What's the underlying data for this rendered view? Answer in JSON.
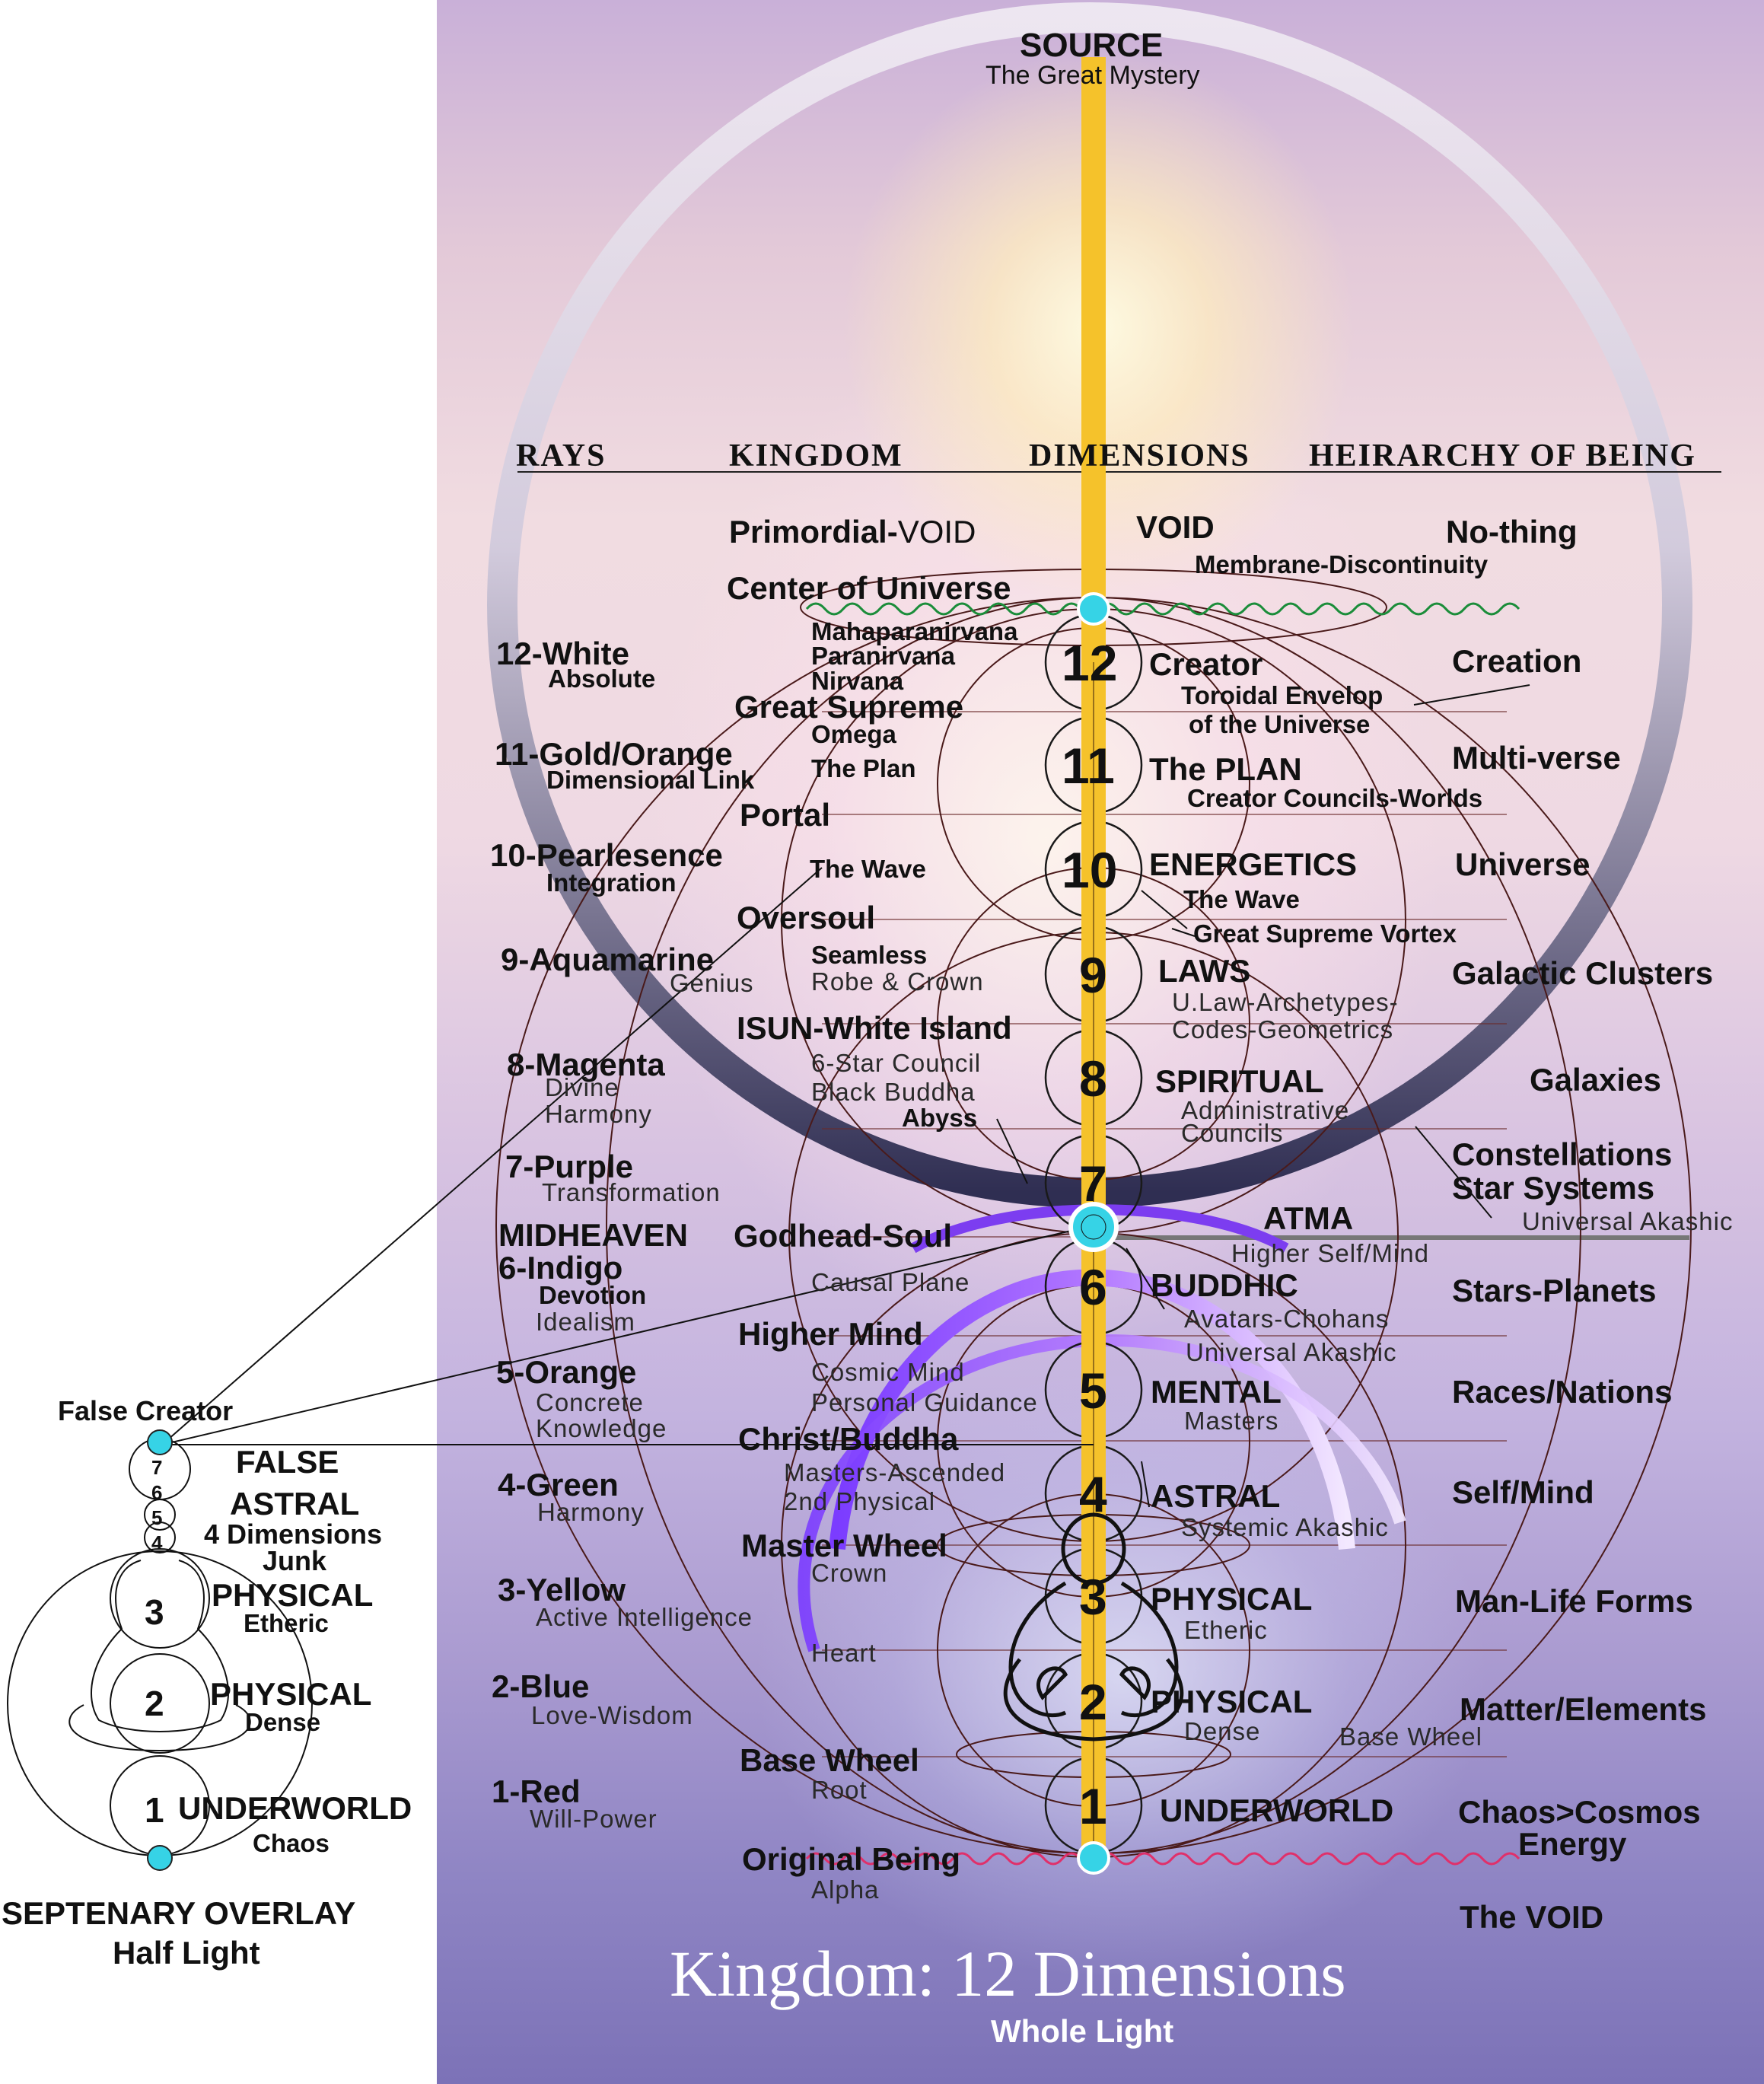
{
  "source": {
    "title": "SOURCE",
    "subtitle": "The Great Mystery"
  },
  "headers": {
    "rays": "RAYS",
    "kingdom": "KINGDOM",
    "dimensions": "DIMENSIONS",
    "hierarchy": "HEIRARCHY OF BEING"
  },
  "footer": {
    "title": "Kingdom: 12 Dimensions",
    "subtitle": "Whole Light"
  },
  "top_void": {
    "kingdom_prefix": "Primordial-",
    "kingdom_suffix": "VOID",
    "dimension": "VOID",
    "membrane": "Membrane-Discontinuity",
    "hierarchy": "No-thing",
    "center": "Center of Universe"
  },
  "dimension_numbers": [
    "1",
    "2",
    "3",
    "4",
    "5",
    "6",
    "7",
    "8",
    "9",
    "10",
    "11",
    "12"
  ],
  "rays": [
    {
      "name": "12-White",
      "desc": "Absolute"
    },
    {
      "name": "11-Gold/Orange",
      "desc": "Dimensional Link"
    },
    {
      "name": "10-Pearlesence",
      "desc": "Integration"
    },
    {
      "name": "9-Aquamarine",
      "desc": "Genius"
    },
    {
      "name": "8-Magenta",
      "desc": "Divine",
      "desc2": "Harmony"
    },
    {
      "name": "7-Purple",
      "desc": "Transformation"
    },
    {
      "name": "6-Indigo",
      "desc": "Devotion",
      "desc2": "Idealism",
      "above": "MIDHEAVEN"
    },
    {
      "name": "5-Orange",
      "desc": "Concrete",
      "desc2": "Knowledge"
    },
    {
      "name": "4-Green",
      "desc": "Harmony"
    },
    {
      "name": "3-Yellow",
      "desc": "Active Intelligence"
    },
    {
      "name": "2-Blue",
      "desc": "Love-Wisdom"
    },
    {
      "name": "1-Red",
      "desc": "Will-Power"
    }
  ],
  "kingdom": {
    "maha": "Mahaparanirvana",
    "parani": "Paranirvana",
    "nirvana": "Nirvana",
    "great_supreme": "Great Supreme",
    "omega": "Omega",
    "plan": "The Plan",
    "portal": "Portal",
    "wave": "The Wave",
    "oversoul": "Oversoul",
    "seamless": "Seamless",
    "robe": "Robe & Crown",
    "isun": "ISUN-White Island",
    "star_council": "6-Star Council",
    "black_buddha": "Black Buddha",
    "abyss": "Abyss",
    "godhead": "Godhead-Soul",
    "causal": "Causal Plane",
    "higher_mind": "Higher Mind",
    "cosmic_mind": "Cosmic Mind",
    "personal_guidance": "Personal Guidance",
    "christ": "Christ/Buddha",
    "masters_ascended": "Masters-Ascended",
    "second_physical": "2nd Physical",
    "master_wheel": "Master Wheel",
    "crown": "Crown",
    "heart": "Heart",
    "base_wheel": "Base Wheel",
    "root": "Root",
    "original_being": "Original Being",
    "alpha": "Alpha"
  },
  "dimensions": {
    "creator": "Creator",
    "toroidal1": "Toroidal Envelop",
    "toroidal2": "of the Universe",
    "plan": "The PLAN",
    "councils": "Creator Councils-Worlds",
    "energetics": "ENERGETICS",
    "wave": "The Wave",
    "vortex": "Great Supreme Vortex",
    "laws": "LAWS",
    "ulaw": "U.Law-Archetypes-",
    "codes": "Codes-Geometrics",
    "spiritual": "SPIRITUAL",
    "admin": "Administrative",
    "councils2": "Councils",
    "atma": "ATMA",
    "higher_self": "Higher Self/Mind",
    "buddhic": "BUDDHIC",
    "avatars": "Avatars-Chohans",
    "universal_akashic": "Universal Akashic",
    "mental": "MENTAL",
    "masters": "Masters",
    "astral": "ASTRAL",
    "systemic": "Systemic Akashic",
    "physical3": "PHYSICAL",
    "etheric": "Etheric",
    "physical2": "PHYSICAL",
    "dense": "Dense",
    "base_wheel": "Base Wheel",
    "underworld": "UNDERWORLD"
  },
  "hierarchy": {
    "creation": "Creation",
    "multiverse": "Multi-verse",
    "universe": "Universe",
    "galactic": "Galactic Clusters",
    "galaxies": "Galaxies",
    "constellations": "Constellations",
    "star_systems": "Star Systems",
    "universal_akashic": "Universal Akashic",
    "stars": "Stars-Planets",
    "races": "Races/Nations",
    "self": "Self/Mind",
    "man": "Man-Life Forms",
    "matter": "Matter/Elements",
    "chaos": "Chaos>Cosmos",
    "energy": "Energy",
    "void": "The VOID"
  },
  "septenary": {
    "false_creator": "False Creator",
    "false": "FALSE",
    "astral": "ASTRAL",
    "four_dims": "4 Dimensions",
    "junk": "Junk",
    "small_nums": [
      "7",
      "6",
      "5",
      "4"
    ],
    "nums": [
      "3",
      "2",
      "1"
    ],
    "physical3": "PHYSICAL",
    "etheric": "Etheric",
    "physical2": "PHYSICAL",
    "dense": "Dense",
    "underworld": "UNDERWORLD",
    "chaos": "Chaos",
    "title": "SEPTENARY OVERLAY",
    "subtitle": "Half Light"
  },
  "colors": {
    "axis": "#f5c22b",
    "node": "#36d3e6",
    "ring_top": "#e9e3ee",
    "ring_bottom": "#3b3a5c",
    "arc": "#9b57ff",
    "wave_top": "#1b8d3a",
    "wave_bottom": "#e0306a"
  }
}
